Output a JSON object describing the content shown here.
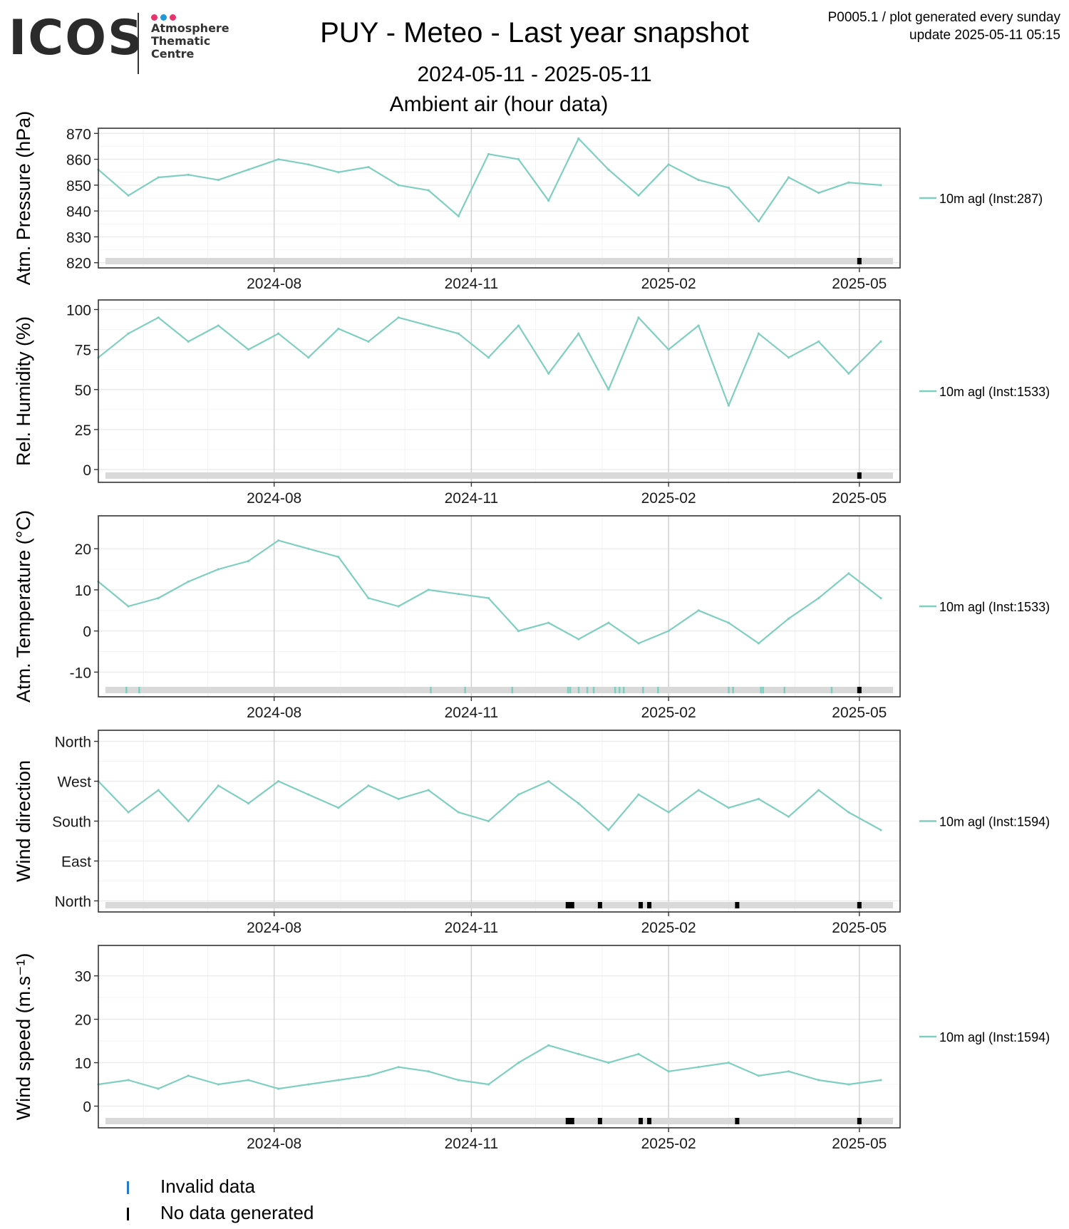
{
  "header": {
    "logo_word": "ICOS",
    "logo_sub": "Atmosphere\nThematic\nCentre",
    "logo_dot_colors": [
      "#e8336e",
      "#1e9ad6",
      "#e8336e"
    ],
    "title": "PUY - Meteo - Last year snapshot",
    "date_range": "2024-05-11 - 2025-05-11",
    "subtitle": "Ambient air (hour data)",
    "meta_line1": "P0005.1 / plot generated every sunday",
    "meta_line2": "update  2025-05-11 05:15"
  },
  "colors": {
    "series": "#7fcfc0",
    "status_bar": "#d9d9d9",
    "no_data": "#000000",
    "invalid": "#2878c8",
    "grid": "#ebebeb",
    "frame": "#333333"
  },
  "chart_data": [
    {
      "type": "line",
      "ylabel": "Atm. Pressure (hPa)",
      "ylim": [
        818,
        872
      ],
      "yticks": [
        820,
        830,
        840,
        850,
        860,
        870
      ],
      "ytick_labels": [
        "820",
        "830",
        "840",
        "850",
        "860",
        "870"
      ],
      "x": [
        "2024-05-11",
        "2024-05-25",
        "2024-06-08",
        "2024-06-22",
        "2024-07-06",
        "2024-07-20",
        "2024-08-03",
        "2024-08-17",
        "2024-08-31",
        "2024-09-14",
        "2024-09-28",
        "2024-10-12",
        "2024-10-26",
        "2024-11-09",
        "2024-11-23",
        "2024-12-07",
        "2024-12-21",
        "2025-01-04",
        "2025-01-18",
        "2025-02-01",
        "2025-02-15",
        "2025-03-01",
        "2025-03-15",
        "2025-03-29",
        "2025-04-12",
        "2025-04-26",
        "2025-05-11"
      ],
      "series": [
        {
          "name": "10m agl (Inst:287)",
          "values": [
            856,
            846,
            853,
            854,
            852,
            856,
            860,
            858,
            855,
            857,
            850,
            848,
            838,
            862,
            860,
            844,
            868,
            856,
            846,
            858,
            852,
            849,
            836,
            853,
            847,
            851,
            850
          ]
        }
      ],
      "no_data_dates": [
        "2025-05-01"
      ],
      "invalid_dates": [],
      "xticks": [
        "2024-08-01",
        "2024-11-01",
        "2025-02-01",
        "2025-05-01"
      ],
      "xtick_labels": [
        "2024-08",
        "2024-11",
        "2025-02",
        "2025-05"
      ],
      "show_xtick_labels": true,
      "legend": "10m agl (Inst:287)",
      "grid": true,
      "legend_position": "right"
    },
    {
      "type": "line",
      "ylabel": "Rel. Humidity (%)",
      "ylim": [
        -8,
        106
      ],
      "yticks": [
        0,
        25,
        50,
        75,
        100
      ],
      "ytick_labels": [
        "0",
        "25",
        "50",
        "75",
        "100"
      ],
      "x": [
        "2024-05-11",
        "2024-05-25",
        "2024-06-08",
        "2024-06-22",
        "2024-07-06",
        "2024-07-20",
        "2024-08-03",
        "2024-08-17",
        "2024-08-31",
        "2024-09-14",
        "2024-09-28",
        "2024-10-12",
        "2024-10-26",
        "2024-11-09",
        "2024-11-23",
        "2024-12-07",
        "2024-12-21",
        "2025-01-04",
        "2025-01-18",
        "2025-02-01",
        "2025-02-15",
        "2025-03-01",
        "2025-03-15",
        "2025-03-29",
        "2025-04-12",
        "2025-04-26",
        "2025-05-11"
      ],
      "series": [
        {
          "name": "10m agl (Inst:1533)",
          "values": [
            70,
            85,
            95,
            80,
            90,
            75,
            85,
            70,
            88,
            80,
            95,
            90,
            85,
            70,
            90,
            60,
            85,
            50,
            95,
            75,
            90,
            40,
            85,
            70,
            80,
            60,
            80
          ]
        }
      ],
      "no_data_dates": [
        "2025-05-01"
      ],
      "invalid_dates": [],
      "xticks": [
        "2024-08-01",
        "2024-11-01",
        "2025-02-01",
        "2025-05-01"
      ],
      "xtick_labels": [
        "2024-08",
        "2024-11",
        "2025-02",
        "2025-05"
      ],
      "show_xtick_labels": true,
      "legend": "10m agl (Inst:1533)",
      "grid": true,
      "legend_position": "right"
    },
    {
      "type": "line",
      "ylabel": "Atm. Temperature (°C)",
      "ylim": [
        -16,
        28
      ],
      "yticks": [
        -10,
        0,
        10,
        20
      ],
      "ytick_labels": [
        "-10",
        "0",
        "10",
        "20"
      ],
      "x": [
        "2024-05-11",
        "2024-05-25",
        "2024-06-08",
        "2024-06-22",
        "2024-07-06",
        "2024-07-20",
        "2024-08-03",
        "2024-08-17",
        "2024-08-31",
        "2024-09-14",
        "2024-09-28",
        "2024-10-12",
        "2024-10-26",
        "2024-11-09",
        "2024-11-23",
        "2024-12-07",
        "2024-12-21",
        "2025-01-04",
        "2025-01-18",
        "2025-02-01",
        "2025-02-15",
        "2025-03-01",
        "2025-03-15",
        "2025-03-29",
        "2025-04-12",
        "2025-04-26",
        "2025-05-11"
      ],
      "series": [
        {
          "name": "10m agl (Inst:1533)",
          "values": [
            12,
            6,
            8,
            12,
            15,
            17,
            22,
            20,
            18,
            8,
            6,
            10,
            9,
            8,
            0,
            2,
            -2,
            2,
            -3,
            0,
            5,
            2,
            -3,
            3,
            8,
            14,
            8
          ]
        }
      ],
      "no_data_dates": [
        "2025-05-01"
      ],
      "invalid_dates": [
        "2024-05-24",
        "2024-05-30",
        "2024-10-13",
        "2024-10-29",
        "2024-11-20",
        "2024-12-16",
        "2024-12-17",
        "2024-12-21",
        "2024-12-25",
        "2024-12-28",
        "2025-01-07",
        "2025-01-09",
        "2025-01-11",
        "2025-01-20",
        "2025-01-27",
        "2025-03-01",
        "2025-03-03",
        "2025-03-16",
        "2025-03-17",
        "2025-03-27",
        "2025-04-18"
      ],
      "xticks": [
        "2024-08-01",
        "2024-11-01",
        "2025-02-01",
        "2025-05-01"
      ],
      "xtick_labels": [
        "2024-08",
        "2024-11",
        "2025-02",
        "2025-05"
      ],
      "show_xtick_labels": true,
      "legend": "10m agl (Inst:1533)",
      "grid": true,
      "legend_position": "right"
    },
    {
      "type": "line",
      "ylabel": "Wind direction",
      "ylim": [
        -25,
        385
      ],
      "yticks": [
        0,
        90,
        180,
        270,
        360
      ],
      "ytick_labels": [
        "North",
        "East",
        "South",
        "West",
        "North"
      ],
      "x": [
        "2024-05-11",
        "2024-05-25",
        "2024-06-08",
        "2024-06-22",
        "2024-07-06",
        "2024-07-20",
        "2024-08-03",
        "2024-08-17",
        "2024-08-31",
        "2024-09-14",
        "2024-09-28",
        "2024-10-12",
        "2024-10-26",
        "2024-11-09",
        "2024-11-23",
        "2024-12-07",
        "2024-12-21",
        "2025-01-04",
        "2025-01-18",
        "2025-02-01",
        "2025-02-15",
        "2025-03-01",
        "2025-03-15",
        "2025-03-29",
        "2025-04-12",
        "2025-04-26",
        "2025-05-11"
      ],
      "series": [
        {
          "name": "10m agl (Inst:1594)",
          "values": [
            270,
            200,
            250,
            180,
            260,
            220,
            270,
            240,
            210,
            260,
            230,
            250,
            200,
            180,
            240,
            270,
            220,
            160,
            240,
            200,
            250,
            210,
            230,
            190,
            250,
            200,
            160
          ]
        }
      ],
      "no_data_dates": [
        "2024-12-16",
        "2024-12-17",
        "2024-12-18",
        "2024-12-31",
        "2025-01-19",
        "2025-01-23",
        "2025-03-05",
        "2025-05-01"
      ],
      "invalid_dates": [],
      "xticks": [
        "2024-08-01",
        "2024-11-01",
        "2025-02-01",
        "2025-05-01"
      ],
      "xtick_labels": [
        "2024-08",
        "2024-11",
        "2025-02",
        "2025-05"
      ],
      "show_xtick_labels": true,
      "legend": "10m agl (Inst:1594)",
      "grid": true,
      "legend_position": "right"
    },
    {
      "type": "line",
      "ylabel": "Wind speed (m.s⁻¹)",
      "ylim": [
        -5,
        37
      ],
      "yticks": [
        0,
        10,
        20,
        30
      ],
      "ytick_labels": [
        "0",
        "10",
        "20",
        "30"
      ],
      "x": [
        "2024-05-11",
        "2024-05-25",
        "2024-06-08",
        "2024-06-22",
        "2024-07-06",
        "2024-07-20",
        "2024-08-03",
        "2024-08-17",
        "2024-08-31",
        "2024-09-14",
        "2024-09-28",
        "2024-10-12",
        "2024-10-26",
        "2024-11-09",
        "2024-11-23",
        "2024-12-07",
        "2024-12-21",
        "2025-01-04",
        "2025-01-18",
        "2025-02-01",
        "2025-02-15",
        "2025-03-01",
        "2025-03-15",
        "2025-03-29",
        "2025-04-12",
        "2025-04-26",
        "2025-05-11"
      ],
      "series": [
        {
          "name": "10m agl (Inst:1594)",
          "values": [
            5,
            6,
            4,
            7,
            5,
            6,
            4,
            5,
            6,
            7,
            9,
            8,
            6,
            5,
            10,
            14,
            12,
            10,
            12,
            8,
            9,
            10,
            7,
            8,
            6,
            5,
            6
          ]
        }
      ],
      "no_data_dates": [
        "2024-12-16",
        "2024-12-17",
        "2024-12-18",
        "2024-12-31",
        "2025-01-19",
        "2025-01-23",
        "2025-03-05",
        "2025-05-01"
      ],
      "invalid_dates": [],
      "xticks": [
        "2024-08-01",
        "2024-11-01",
        "2025-02-01",
        "2025-05-01"
      ],
      "xtick_labels": [
        "2024-08",
        "2024-11",
        "2025-02",
        "2025-05"
      ],
      "show_xtick_labels": true,
      "legend": "10m agl (Inst:1594)",
      "grid": true,
      "legend_position": "right"
    }
  ],
  "bottom_legend": [
    {
      "label": "Invalid data",
      "color": "#2878c8"
    },
    {
      "label": "No data generated",
      "color": "#000000"
    }
  ]
}
